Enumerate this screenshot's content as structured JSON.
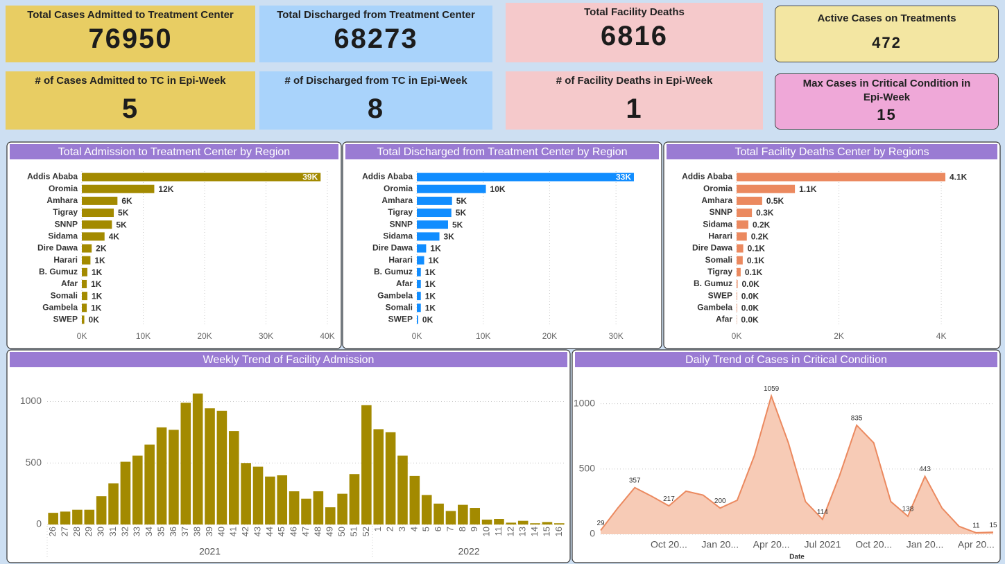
{
  "cards": [
    {
      "title": "Total Cases Admitted to Treatment Center",
      "value": 76950
    },
    {
      "title": "Total Discharged from Treatment Center",
      "value": 68273
    },
    {
      "title": "Total Facility Deaths",
      "value": 6816
    },
    {
      "title": "Active Cases on Treatments",
      "value": 472
    },
    {
      "title": "# of Cases Admitted to TC in Epi-Week",
      "value": 5
    },
    {
      "title": "# of Discharged from TC in Epi-Week",
      "value": 8
    },
    {
      "title": "# of Facility Deaths in Epi-Week",
      "value": 1
    },
    {
      "title": "Max Cases in Critical Condition in Epi-Week",
      "value": 15
    }
  ],
  "chart_data": [
    {
      "type": "hbar",
      "title": "Total Admission to Treatment Center by Region",
      "categories": [
        "Addis Ababa",
        "Oromia",
        "Amhara",
        "Tigray",
        "SNNP",
        "Sidama",
        "Dire Dawa",
        "Harari",
        "B. Gumuz",
        "Afar",
        "Somali",
        "Gambela",
        "SWEP"
      ],
      "values": [
        38900,
        11800,
        5800,
        5200,
        4900,
        3700,
        1600,
        1400,
        900,
        800,
        900,
        800,
        400
      ],
      "value_labels": [
        "39K",
        "12K",
        "6K",
        "5K",
        "5K",
        "4K",
        "2K",
        "1K",
        "1K",
        "1K",
        "1K",
        "1K",
        "0K"
      ],
      "color": "#a38a00",
      "xlim": [
        0,
        40000
      ],
      "xticks": [
        {
          "value": 0,
          "label": "0K"
        },
        {
          "value": 10000,
          "label": "10K"
        },
        {
          "value": 20000,
          "label": "20K"
        },
        {
          "value": 30000,
          "label": "30K"
        },
        {
          "value": 40000,
          "label": "40K"
        }
      ],
      "grid": true
    },
    {
      "type": "hbar",
      "title": "Total Discharged from Treatment Center by Region",
      "categories": [
        "Addis Ababa",
        "Oromia",
        "Amhara",
        "Tigray",
        "SNNP",
        "Sidama",
        "Dire Dawa",
        "Harari",
        "B. Gumuz",
        "Afar",
        "Gambela",
        "Somali",
        "SWEP"
      ],
      "values": [
        32700,
        10400,
        5300,
        5200,
        4700,
        3400,
        1400,
        1100,
        600,
        600,
        600,
        600,
        200
      ],
      "value_labels": [
        "33K",
        "10K",
        "5K",
        "5K",
        "5K",
        "3K",
        "1K",
        "1K",
        "1K",
        "1K",
        "1K",
        "1K",
        "0K"
      ],
      "color": "#118dff",
      "xlim": [
        0,
        35000
      ],
      "xticks": [
        {
          "value": 0,
          "label": "0K"
        },
        {
          "value": 10000,
          "label": "10K"
        },
        {
          "value": 20000,
          "label": "20K"
        },
        {
          "value": 30000,
          "label": "30K"
        }
      ],
      "grid": true
    },
    {
      "type": "hbar",
      "title": "Total Facility Deaths Center by Regions",
      "categories": [
        "Addis Ababa",
        "Oromia",
        "Amhara",
        "SNNP",
        "Sidama",
        "Harari",
        "Dire Dawa",
        "Somali",
        "Tigray",
        "B. Gumuz",
        "SWEP",
        "Gambela",
        "Afar"
      ],
      "values": [
        4080,
        1140,
        500,
        300,
        230,
        200,
        130,
        120,
        80,
        20,
        10,
        10,
        5
      ],
      "value_labels": [
        "4.1K",
        "1.1K",
        "0.5K",
        "0.3K",
        "0.2K",
        "0.2K",
        "0.1K",
        "0.1K",
        "0.1K",
        "0.0K",
        "0.0K",
        "0.0K",
        "0.0K"
      ],
      "color": "#eb895f",
      "xlim": [
        0,
        4500
      ],
      "xticks": [
        {
          "value": 0,
          "label": "0K"
        },
        {
          "value": 2000,
          "label": "2K"
        },
        {
          "value": 4000,
          "label": "4K"
        }
      ],
      "grid": true
    },
    {
      "type": "bar",
      "title": "Weekly Trend of Facility Admission",
      "category_groups": [
        {
          "name": "2021",
          "categories": [
            "26",
            "27",
            "28",
            "29",
            "30",
            "31",
            "32",
            "33",
            "34",
            "35",
            "36",
            "37",
            "38",
            "39",
            "40",
            "41",
            "42",
            "43",
            "44",
            "45",
            "46",
            "47",
            "48",
            "49",
            "50",
            "51",
            "52"
          ]
        },
        {
          "name": "2022",
          "categories": [
            "1",
            "2",
            "3",
            "4",
            "5",
            "6",
            "7",
            "8",
            "9",
            "10",
            "11",
            "12",
            "13",
            "14",
            "15",
            "16"
          ]
        }
      ],
      "values": [
        95,
        105,
        120,
        120,
        230,
        335,
        510,
        560,
        650,
        790,
        770,
        990,
        1065,
        945,
        925,
        760,
        500,
        470,
        390,
        400,
        270,
        210,
        270,
        140,
        250,
        410,
        970,
        775,
        750,
        560,
        395,
        240,
        170,
        110,
        160,
        135,
        40,
        45,
        15,
        30,
        10,
        20,
        10
      ],
      "color": "#a38a00",
      "ylim": [
        0,
        1200
      ],
      "yticks": [
        0,
        500,
        1000
      ],
      "grid": true
    },
    {
      "type": "area",
      "title": "Daily Trend of Cases in Critical Condition",
      "x": [
        "2020-06",
        "2020-07",
        "2020-08",
        "2020-09",
        "2020-10",
        "2020-11",
        "2020-12",
        "2021-01",
        "2021-02",
        "2021-03",
        "2021-04",
        "2021-05",
        "2021-06",
        "2021-07",
        "2021-08",
        "2021-09",
        "2021-10",
        "2021-11",
        "2021-12",
        "2022-01",
        "2022-02",
        "2022-03",
        "2022-04",
        "2022-05"
      ],
      "values": [
        29,
        200,
        357,
        290,
        217,
        330,
        300,
        200,
        260,
        600,
        1059,
        700,
        250,
        114,
        450,
        835,
        700,
        250,
        138,
        443,
        200,
        60,
        11,
        15
      ],
      "value_labels": [
        29,
        null,
        357,
        null,
        217,
        null,
        null,
        200,
        null,
        null,
        1059,
        null,
        null,
        114,
        null,
        835,
        null,
        null,
        138,
        443,
        null,
        null,
        11,
        15
      ],
      "xticks": [
        {
          "value": "2020-10",
          "label": "Oct 20..."
        },
        {
          "value": "2021-01",
          "label": "Jan 20..."
        },
        {
          "value": "2021-04",
          "label": "Apr 20..."
        },
        {
          "value": "2021-07",
          "label": "Jul 2021"
        },
        {
          "value": "2021-10",
          "label": "Oct 20..."
        },
        {
          "value": "2022-01",
          "label": "Jan 20..."
        },
        {
          "value": "2022-04",
          "label": "Apr 20..."
        }
      ],
      "x_label": "Date",
      "color": "#eb895f",
      "fill_color": "#f7cbb6",
      "ylim": [
        0,
        1200
      ],
      "yticks": [
        0,
        500,
        1000
      ],
      "grid": true
    }
  ]
}
